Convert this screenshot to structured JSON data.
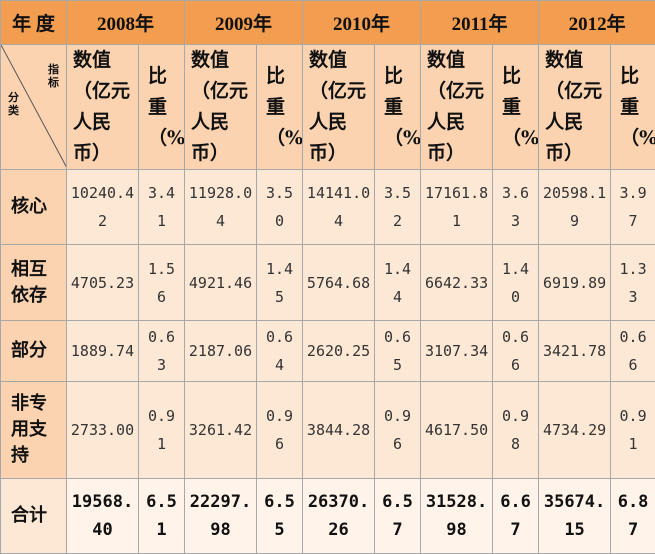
{
  "header": {
    "year_label": "年  度",
    "years": [
      "2008年",
      "2009年",
      "2010年",
      "2011年",
      "2012年"
    ]
  },
  "subheader": {
    "value_label": "数值（亿元人民币）",
    "ratio_label": "比重（%）",
    "diag_top": "指标",
    "diag_bottom": "分类"
  },
  "rows": [
    {
      "category": "核心",
      "cells": [
        [
          "10240.42",
          "3.41"
        ],
        [
          "11928.04",
          "3.50"
        ],
        [
          "14141.04",
          "3.52"
        ],
        [
          "17161.81",
          "3.63"
        ],
        [
          "20598.19",
          "3.97"
        ]
      ]
    },
    {
      "category": "相互依存",
      "cells": [
        [
          "4705.23",
          "1.56"
        ],
        [
          "4921.46",
          "1.45"
        ],
        [
          "5764.68",
          "1.44"
        ],
        [
          "6642.33",
          "1.40"
        ],
        [
          "6919.89",
          "1.33"
        ]
      ]
    },
    {
      "category": "部分",
      "cells": [
        [
          "1889.74",
          "0.63"
        ],
        [
          "2187.06",
          "0.64"
        ],
        [
          "2620.25",
          "0.65"
        ],
        [
          "3107.34",
          "0.66"
        ],
        [
          "3421.78",
          "0.66"
        ]
      ]
    },
    {
      "category": "非专用支持",
      "cells": [
        [
          "2733.00",
          "0.91"
        ],
        [
          "3261.42",
          "0.96"
        ],
        [
          "3844.28",
          "0.96"
        ],
        [
          "4617.50",
          "0.98"
        ],
        [
          "4734.29",
          "0.91"
        ]
      ]
    },
    {
      "category": "合计",
      "cells": [
        [
          "19568.40",
          "6.51"
        ],
        [
          "22297.98",
          "6.55"
        ],
        [
          "26370.26",
          "6.57"
        ],
        [
          "31528.98",
          "6.67"
        ],
        [
          "35674.15",
          "6.87"
        ]
      ]
    }
  ],
  "colors": {
    "header_bg": "#f29d4f",
    "subheader_bg": "#fbd3b1",
    "cell_bg": "#fde8d6",
    "total_bg": "#fff3ea"
  }
}
